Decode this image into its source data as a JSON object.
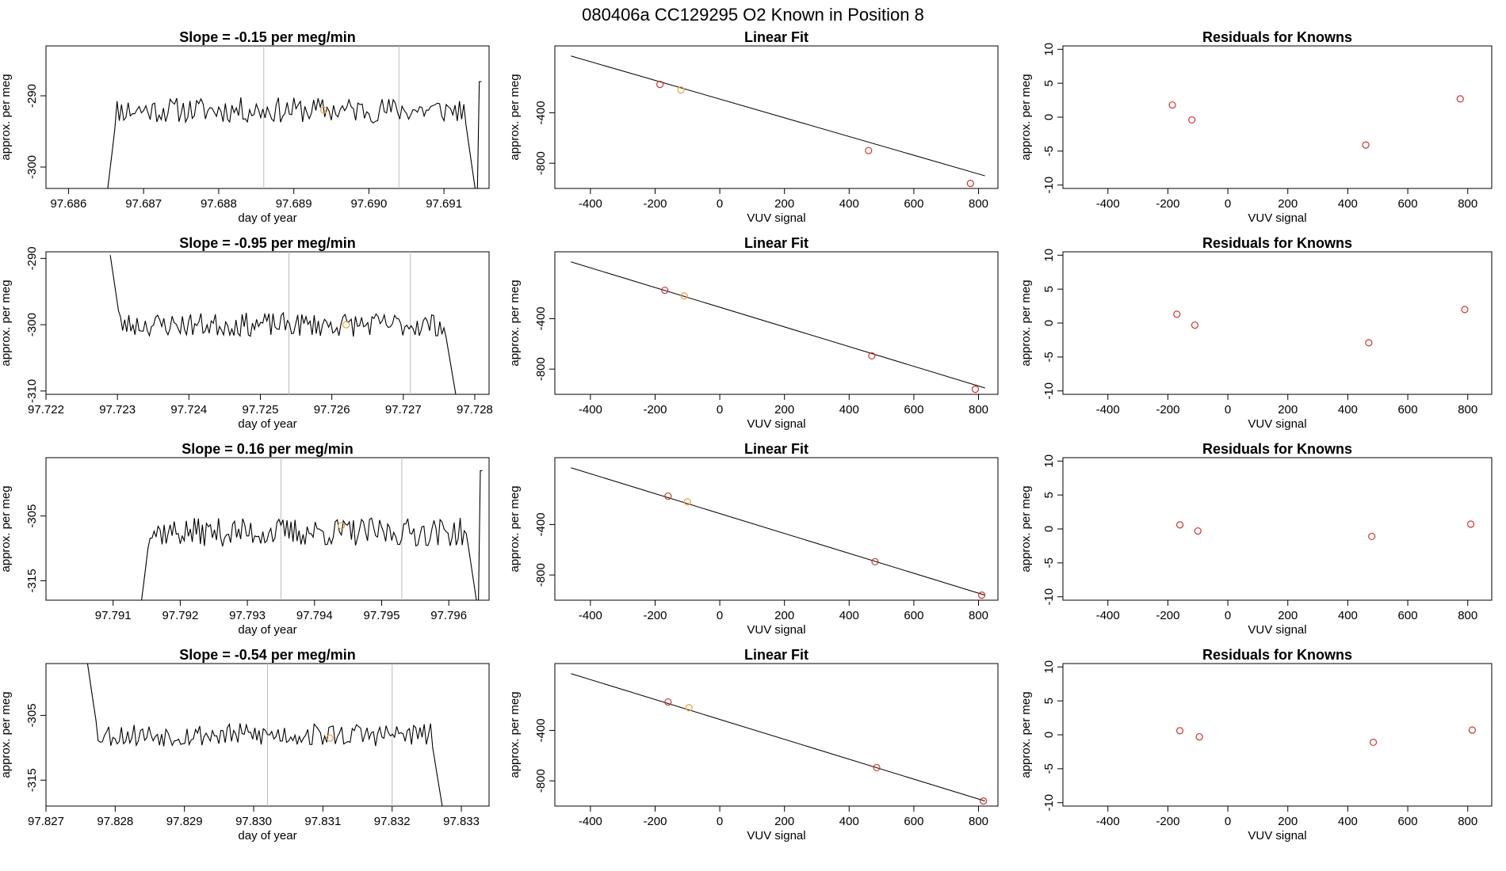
{
  "title": "080406a      CC129295   O2 Known in Position  8",
  "colors": {
    "line": "#000000",
    "marker_red": "#cd3333",
    "marker_orange": "#e8a33a",
    "vline": "#bbbbbb"
  },
  "chart_data": [
    {
      "row": 1,
      "timeseries": {
        "type": "line",
        "title": "Slope =  -0.15  per meg/min",
        "xlabel": "day of year",
        "ylabel": "approx. per meg",
        "xlim": [
          97.6857,
          97.6916
        ],
        "ylim": [
          -303,
          -283
        ],
        "xticks": [
          97.686,
          97.687,
          97.688,
          97.689,
          97.69,
          97.691
        ],
        "xtick_labels": [
          "97.686",
          "97.687",
          "97.688",
          "97.689",
          "97.690",
          "97.691"
        ],
        "yticks": [
          -300,
          -290
        ],
        "ytick_labels": [
          "-300",
          "-290"
        ],
        "vlines": [
          97.6886,
          97.6904
        ],
        "marker": {
          "x": 97.6894,
          "y": -292
        },
        "x_start": 97.6865,
        "x_end": 97.6915,
        "y_level": -292,
        "y_noise": 1.8,
        "seed": 11,
        "start_y": -305,
        "end_y": -288,
        "ending_drop": -305
      },
      "fit": {
        "type": "scatter",
        "title": "Linear Fit",
        "xlabel": "VUV signal",
        "ylabel": "approx. per meg",
        "xlim": [
          -510,
          860
        ],
        "ylim": [
          -1000,
          130
        ],
        "xticks": [
          -400,
          -200,
          0,
          200,
          400,
          600,
          800
        ],
        "xtick_labels": [
          "-400",
          "-200",
          "0",
          "200",
          "400",
          "600",
          "800"
        ],
        "yticks": [
          -800,
          -400
        ],
        "ytick_labels": [
          "-800",
          "-400"
        ],
        "line": {
          "x": [
            -460,
            820
          ],
          "y": [
            50,
            -900
          ]
        },
        "points": [
          {
            "x": -185,
            "y": -175
          },
          {
            "x": -120,
            "y": -220
          },
          {
            "x": 460,
            "y": -700
          },
          {
            "x": 775,
            "y": -960
          }
        ],
        "orange_index": 1
      },
      "residuals": {
        "type": "scatter",
        "title": "Residuals for Knowns",
        "xlabel": "VUV signal",
        "ylabel": "approx. per meg",
        "xlim": [
          -550,
          880
        ],
        "ylim": [
          -10.5,
          10.5
        ],
        "xticks": [
          -400,
          -200,
          0,
          200,
          400,
          600,
          800
        ],
        "xtick_labels": [
          "-400",
          "-200",
          "0",
          "200",
          "400",
          "600",
          "800"
        ],
        "yticks": [
          -10,
          -5,
          0,
          5,
          10
        ],
        "ytick_labels": [
          "-10",
          "-5",
          "0",
          "5",
          "10"
        ],
        "points": [
          {
            "x": -185,
            "y": 1.8
          },
          {
            "x": -120,
            "y": -0.4
          },
          {
            "x": 460,
            "y": -4.1
          },
          {
            "x": 775,
            "y": 2.7
          }
        ]
      }
    },
    {
      "row": 2,
      "timeseries": {
        "type": "line",
        "title": "Slope =  -0.95  per meg/min",
        "xlabel": "day of year",
        "ylabel": "approx. per meg",
        "xlim": [
          97.722,
          97.7282
        ],
        "ylim": [
          -310.5,
          -289
        ],
        "xticks": [
          97.722,
          97.723,
          97.724,
          97.725,
          97.726,
          97.727,
          97.728
        ],
        "xtick_labels": [
          "97.722",
          "97.723",
          "97.724",
          "97.725",
          "97.726",
          "97.727",
          "97.728"
        ],
        "yticks": [
          -310,
          -300,
          -290
        ],
        "ytick_labels": [
          "-310",
          "-300",
          "-290"
        ],
        "vlines": [
          97.7254,
          97.7271
        ],
        "marker": {
          "x": 97.7262,
          "y": -300
        },
        "x_start": 97.7229,
        "x_end": 97.7278,
        "y_level": -300,
        "y_noise": 1.8,
        "seed": 23,
        "start_y": -289.5,
        "end_y": -311,
        "ending_drop": -311
      },
      "fit": {
        "type": "scatter",
        "title": "Linear Fit",
        "xlabel": "VUV signal",
        "ylabel": "approx. per meg",
        "xlim": [
          -510,
          860
        ],
        "ylim": [
          -1000,
          130
        ],
        "xticks": [
          -400,
          -200,
          0,
          200,
          400,
          600,
          800
        ],
        "xtick_labels": [
          "-400",
          "-200",
          "0",
          "200",
          "400",
          "600",
          "800"
        ],
        "yticks": [
          -800,
          -400
        ],
        "ytick_labels": [
          "-800",
          "-400"
        ],
        "line": {
          "x": [
            -460,
            820
          ],
          "y": [
            50,
            -950
          ]
        },
        "points": [
          {
            "x": -170,
            "y": -175
          },
          {
            "x": -110,
            "y": -220
          },
          {
            "x": 470,
            "y": -695
          },
          {
            "x": 790,
            "y": -960
          }
        ],
        "orange_index": 1
      },
      "residuals": {
        "type": "scatter",
        "title": "Residuals for Knowns",
        "xlabel": "VUV signal",
        "ylabel": "approx. per meg",
        "xlim": [
          -550,
          880
        ],
        "ylim": [
          -10.5,
          10.5
        ],
        "xticks": [
          -400,
          -200,
          0,
          200,
          400,
          600,
          800
        ],
        "xtick_labels": [
          "-400",
          "-200",
          "0",
          "200",
          "400",
          "600",
          "800"
        ],
        "yticks": [
          -10,
          -5,
          0,
          5,
          10
        ],
        "ytick_labels": [
          "-10",
          "-5",
          "0",
          "5",
          "10"
        ],
        "points": [
          {
            "x": -170,
            "y": 1.3
          },
          {
            "x": -110,
            "y": -0.3
          },
          {
            "x": 470,
            "y": -2.9
          },
          {
            "x": 790,
            "y": 2.0
          }
        ]
      }
    },
    {
      "row": 3,
      "timeseries": {
        "type": "line",
        "title": "Slope =  0.16  per meg/min",
        "xlabel": "day of year",
        "ylabel": "approx. per meg",
        "xlim": [
          97.79,
          97.7966
        ],
        "ylim": [
          -318,
          -296
        ],
        "xticks": [
          97.791,
          97.792,
          97.793,
          97.794,
          97.795,
          97.796
        ],
        "xtick_labels": [
          "97.791",
          "97.792",
          "97.793",
          "97.794",
          "97.795",
          "97.796"
        ],
        "yticks": [
          -315,
          -305
        ],
        "ytick_labels": [
          "-315",
          "-305"
        ],
        "vlines": [
          97.7935,
          97.7953
        ],
        "marker": {
          "x": 97.7944,
          "y": -306.5
        },
        "x_start": 97.7914,
        "x_end": 97.7965,
        "y_level": -307.5,
        "y_noise": 2.2,
        "seed": 37,
        "start_y": -320,
        "end_y": -298,
        "ending_drop": -320
      },
      "fit": {
        "type": "scatter",
        "title": "Linear Fit",
        "xlabel": "VUV signal",
        "ylabel": "approx. per meg",
        "xlim": [
          -510,
          860
        ],
        "ylim": [
          -1000,
          130
        ],
        "xticks": [
          -400,
          -200,
          0,
          200,
          400,
          600,
          800
        ],
        "xtick_labels": [
          "-400",
          "-200",
          "0",
          "200",
          "400",
          "600",
          "800"
        ],
        "yticks": [
          -800,
          -400
        ],
        "ytick_labels": [
          "-800",
          "-400"
        ],
        "line": {
          "x": [
            -460,
            820
          ],
          "y": [
            50,
            -960
          ]
        },
        "points": [
          {
            "x": -160,
            "y": -175
          },
          {
            "x": -100,
            "y": -220
          },
          {
            "x": 480,
            "y": -695
          },
          {
            "x": 810,
            "y": -960
          }
        ],
        "orange_index": 1
      },
      "residuals": {
        "type": "scatter",
        "title": "Residuals for Knowns",
        "xlabel": "VUV signal",
        "ylabel": "approx. per meg",
        "xlim": [
          -550,
          880
        ],
        "ylim": [
          -10.5,
          10.5
        ],
        "xticks": [
          -400,
          -200,
          0,
          200,
          400,
          600,
          800
        ],
        "xtick_labels": [
          "-400",
          "-200",
          "0",
          "200",
          "400",
          "600",
          "800"
        ],
        "yticks": [
          -10,
          -5,
          0,
          5,
          10
        ],
        "ytick_labels": [
          "-10",
          "-5",
          "0",
          "5",
          "10"
        ],
        "points": [
          {
            "x": -160,
            "y": 0.6
          },
          {
            "x": -100,
            "y": -0.3
          },
          {
            "x": 480,
            "y": -1.1
          },
          {
            "x": 810,
            "y": 0.7
          }
        ]
      }
    },
    {
      "row": 4,
      "timeseries": {
        "type": "line",
        "title": "Slope =  -0.54  per meg/min",
        "xlabel": "day of year",
        "ylabel": "approx. per meg",
        "xlim": [
          97.827,
          97.8334
        ],
        "ylim": [
          -319,
          -297
        ],
        "xticks": [
          97.827,
          97.828,
          97.829,
          97.83,
          97.831,
          97.832,
          97.833
        ],
        "xtick_labels": [
          "97.827",
          "97.828",
          "97.829",
          "97.830",
          "97.831",
          "97.832",
          "97.833"
        ],
        "yticks": [
          -315,
          -305
        ],
        "ytick_labels": [
          "-315",
          "-305"
        ],
        "vlines": [
          97.8302,
          97.832
        ],
        "marker": {
          "x": 97.8311,
          "y": -308.5
        },
        "x_start": 97.8276,
        "x_end": 97.8328,
        "y_level": -308,
        "y_noise": 1.8,
        "seed": 53,
        "start_y": -297,
        "end_y": -320,
        "ending_drop": -320
      },
      "fit": {
        "type": "scatter",
        "title": "Linear Fit",
        "xlabel": "VUV signal",
        "ylabel": "approx. per meg",
        "xlim": [
          -510,
          860
        ],
        "ylim": [
          -1000,
          130
        ],
        "xticks": [
          -400,
          -200,
          0,
          200,
          400,
          600,
          800
        ],
        "xtick_labels": [
          "-400",
          "-200",
          "0",
          "200",
          "400",
          "600",
          "800"
        ],
        "yticks": [
          -800,
          -400
        ],
        "ytick_labels": [
          "-800",
          "-400"
        ],
        "line": {
          "x": [
            -460,
            820
          ],
          "y": [
            50,
            -960
          ]
        },
        "points": [
          {
            "x": -160,
            "y": -175
          },
          {
            "x": -95,
            "y": -220
          },
          {
            "x": 485,
            "y": -695
          },
          {
            "x": 815,
            "y": -960
          }
        ],
        "orange_index": 1
      },
      "residuals": {
        "type": "scatter",
        "title": "Residuals for Knowns",
        "xlabel": "VUV signal",
        "ylabel": "approx. per meg",
        "xlim": [
          -550,
          880
        ],
        "ylim": [
          -10.5,
          10.5
        ],
        "xticks": [
          -400,
          -200,
          0,
          200,
          400,
          600,
          800
        ],
        "xtick_labels": [
          "-400",
          "-200",
          "0",
          "200",
          "400",
          "600",
          "800"
        ],
        "yticks": [
          -10,
          -5,
          0,
          5,
          10
        ],
        "ytick_labels": [
          "-10",
          "-5",
          "0",
          "5",
          "10"
        ],
        "points": [
          {
            "x": -160,
            "y": 0.6
          },
          {
            "x": -95,
            "y": -0.3
          },
          {
            "x": 485,
            "y": -1.1
          },
          {
            "x": 815,
            "y": 0.7
          }
        ]
      }
    }
  ]
}
